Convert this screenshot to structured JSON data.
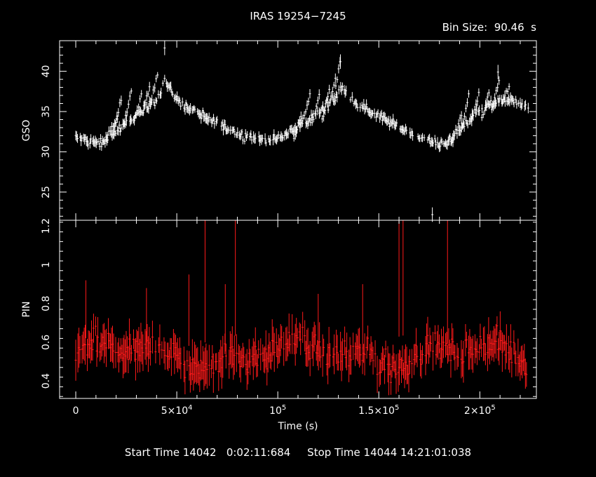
{
  "title": "IRAS 19254−7245",
  "bin_size_label": "Bin Size:  90.46  s",
  "footer": "Start Time 14042   0:02:11:684     Stop Time 14044 14:21:01:038",
  "colors": {
    "background": "#000000",
    "axes": "#ffffff",
    "gso": "#ffffff",
    "pin": "#ff1a1a"
  },
  "chart_data": [
    {
      "type": "scatter",
      "panel": "top",
      "ylabel": "GSO",
      "xlim": [
        -8000,
        228000
      ],
      "ylim": [
        21.5,
        43.8
      ],
      "yticks": [
        25,
        30,
        35,
        40
      ],
      "ytick_labels": [
        "25",
        "30",
        "35",
        "40"
      ],
      "style": "points with vertical error bars",
      "profile_anchors": [
        [
          0,
          31.8
        ],
        [
          8000,
          31.3
        ],
        [
          12000,
          31.0
        ],
        [
          20000,
          32.5
        ],
        [
          30000,
          34.5
        ],
        [
          40000,
          36.5
        ],
        [
          44000,
          38.8
        ],
        [
          50000,
          36.5
        ],
        [
          60000,
          34.8
        ],
        [
          70000,
          33.5
        ],
        [
          80000,
          32.3
        ],
        [
          90000,
          31.6
        ],
        [
          100000,
          31.6
        ],
        [
          110000,
          33.0
        ],
        [
          120000,
          34.8
        ],
        [
          128000,
          36.5
        ],
        [
          131000,
          38.0
        ],
        [
          140000,
          35.8
        ],
        [
          150000,
          34.5
        ],
        [
          160000,
          33.0
        ],
        [
          170000,
          31.8
        ],
        [
          178000,
          31.0
        ],
        [
          185000,
          31.2
        ],
        [
          192000,
          33.5
        ],
        [
          200000,
          35.0
        ],
        [
          210000,
          36.5
        ],
        [
          220000,
          36.2
        ],
        [
          224000,
          35.5
        ]
      ],
      "sawtooth_segments": [
        [
          [
            15000,
            31.5
          ],
          [
            21000,
            34.5
          ]
        ],
        [
          [
            19000,
            33.0
          ],
          [
            23000,
            37.0
          ]
        ],
        [
          [
            24000,
            33.5
          ],
          [
            28000,
            38.0
          ]
        ],
        [
          [
            29000,
            34.0
          ],
          [
            33000,
            37.5
          ]
        ],
        [
          [
            33000,
            35.0
          ],
          [
            37000,
            38.5
          ]
        ],
        [
          [
            37000,
            36.0
          ],
          [
            41000,
            40.0
          ]
        ],
        [
          [
            108000,
            31.5
          ],
          [
            112000,
            35.0
          ]
        ],
        [
          [
            111000,
            33.0
          ],
          [
            116000,
            37.0
          ]
        ],
        [
          [
            117000,
            33.5
          ],
          [
            121000,
            37.5
          ]
        ],
        [
          [
            122000,
            34.0
          ],
          [
            126000,
            38.0
          ]
        ],
        [
          [
            125000,
            35.5
          ],
          [
            129000,
            39.5
          ]
        ],
        [
          [
            128000,
            37.0
          ],
          [
            131000,
            41.5
          ]
        ],
        [
          [
            186000,
            31.0
          ],
          [
            191000,
            34.5
          ]
        ],
        [
          [
            191000,
            33.0
          ],
          [
            195000,
            37.5
          ]
        ],
        [
          [
            196000,
            34.0
          ],
          [
            200000,
            37.5
          ]
        ],
        [
          [
            201000,
            34.0
          ],
          [
            205000,
            37.5
          ]
        ],
        [
          [
            206000,
            35.0
          ],
          [
            210000,
            39.5
          ]
        ],
        [
          [
            211000,
            36.0
          ],
          [
            215000,
            38.5
          ]
        ]
      ],
      "outliers": [
        [
          44000,
          43.5
        ],
        [
          176500,
          22.8
        ],
        [
          131000,
          41.8
        ],
        [
          209000,
          40.5
        ]
      ]
    },
    {
      "type": "scatter",
      "panel": "bottom",
      "ylabel": "PIN",
      "xlabel": "Time (s)",
      "xlim": [
        -8000,
        228000
      ],
      "ylim": [
        0.31,
        1.23
      ],
      "yticks": [
        0.4,
        0.6,
        0.8,
        1.0,
        1.2
      ],
      "ytick_labels": [
        "0.4",
        "0.6",
        "0.8",
        "1",
        "1.2"
      ],
      "xticks": [
        0,
        50000,
        100000,
        150000,
        200000
      ],
      "xtick_labels": [
        {
          "base": "0",
          "sup": ""
        },
        {
          "base": "5×10",
          "sup": "4"
        },
        {
          "base": "10",
          "sup": "5"
        },
        {
          "base": "1.5×10",
          "sup": "5"
        },
        {
          "base": "2×10",
          "sup": "5"
        }
      ],
      "style": "points with vertical error bars",
      "mean_level": 0.54,
      "spikes": [
        [
          64000,
          1.23
        ],
        [
          79000,
          1.23
        ],
        [
          160000,
          1.23
        ],
        [
          162000,
          1.23
        ],
        [
          184000,
          1.23
        ],
        [
          56000,
          0.95
        ],
        [
          74000,
          0.9
        ],
        [
          142000,
          0.9
        ],
        [
          5000,
          0.92
        ],
        [
          35000,
          0.88
        ],
        [
          120000,
          0.85
        ]
      ]
    }
  ]
}
